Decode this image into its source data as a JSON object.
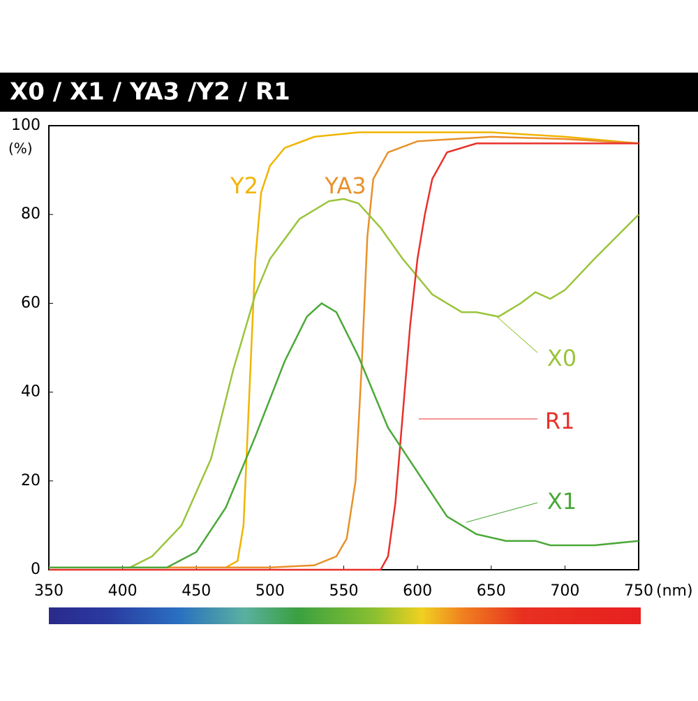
{
  "chart_data": {
    "type": "line",
    "title": "X0 / X1 / YA3 /Y2 / R1",
    "y_unit": "(%)",
    "x_unit": "(nm)",
    "xlim": [
      350,
      750
    ],
    "xticks": [
      350,
      400,
      450,
      500,
      550,
      600,
      650,
      700,
      750
    ],
    "ylim": [
      0,
      100
    ],
    "yticks": [
      0,
      20,
      40,
      60,
      80,
      100
    ],
    "series": [
      {
        "name": "Y2",
        "color": "#f0b400",
        "x": [
          350,
          470,
          478,
          482,
          486,
          490,
          494,
          500,
          510,
          530,
          560,
          650,
          700,
          750
        ],
        "values": [
          0.5,
          0.5,
          2,
          10,
          40,
          70,
          85,
          91,
          95,
          97.5,
          98.5,
          98.5,
          97.5,
          96
        ]
      },
      {
        "name": "YA3",
        "color": "#e8902a",
        "x": [
          350,
          500,
          530,
          545,
          552,
          558,
          562,
          566,
          570,
          580,
          600,
          650,
          700,
          750
        ],
        "values": [
          0.5,
          0.5,
          1,
          3,
          7,
          20,
          45,
          75,
          88,
          94,
          96.5,
          97.5,
          97,
          96
        ]
      },
      {
        "name": "X0",
        "color": "#9ac43a",
        "x": [
          350,
          405,
          420,
          440,
          460,
          475,
          490,
          500,
          520,
          540,
          550,
          560,
          575,
          590,
          610,
          630,
          640,
          655,
          670,
          680,
          690,
          700,
          720,
          750
        ],
        "values": [
          0.5,
          0.5,
          3,
          10,
          25,
          45,
          62,
          70,
          79,
          83,
          83.5,
          82.5,
          77,
          70,
          62,
          58,
          58,
          57,
          60,
          62.5,
          61,
          63,
          70,
          80
        ]
      },
      {
        "name": "R1",
        "color": "#e8302a",
        "x": [
          350,
          575,
          580,
          585,
          590,
          595,
          600,
          605,
          610,
          620,
          640,
          700,
          750
        ],
        "values": [
          0,
          0,
          3,
          15,
          35,
          55,
          70,
          80,
          88,
          94,
          96,
          96,
          96
        ]
      },
      {
        "name": "X1",
        "color": "#4aa838",
        "x": [
          350,
          430,
          450,
          470,
          490,
          510,
          525,
          535,
          545,
          560,
          580,
          600,
          620,
          640,
          660,
          680,
          690,
          720,
          750
        ],
        "values": [
          0.5,
          0.5,
          4,
          14,
          30,
          47,
          57,
          60,
          58,
          48,
          32,
          22,
          12,
          8,
          6.5,
          6.5,
          5.5,
          5.5,
          6.5
        ]
      }
    ]
  }
}
